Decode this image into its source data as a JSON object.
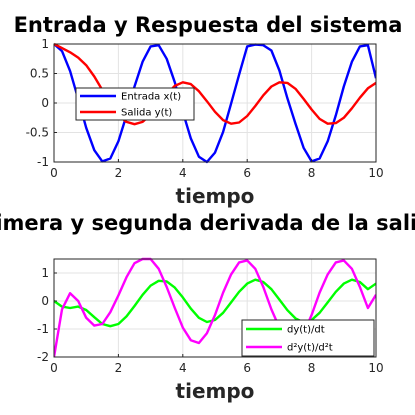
{
  "chart_data": [
    {
      "type": "line",
      "title": "Entrada y Respuesta del sistema",
      "xlabel": "tiempo",
      "ylabel": "",
      "xlim": [
        0,
        10
      ],
      "ylim": [
        -1,
        1
      ],
      "xticks": [
        "0",
        "2",
        "4",
        "6",
        "8",
        "10"
      ],
      "yticks": [
        "-1",
        "-0.5",
        "0",
        "0.5",
        "1"
      ],
      "grid": true,
      "legend_position": "center-left",
      "series": [
        {
          "name": "Entrada x(t)",
          "color": "#0000ff",
          "x": [
            0,
            0.25,
            0.5,
            0.75,
            1,
            1.25,
            1.5,
            1.75,
            2,
            2.25,
            2.5,
            2.75,
            3,
            3.25,
            3.5,
            3.75,
            4,
            4.25,
            4.5,
            4.75,
            5,
            5.25,
            5.5,
            5.75,
            6,
            6.25,
            6.5,
            6.75,
            7,
            7.25,
            7.5,
            7.75,
            8,
            8.25,
            8.5,
            8.75,
            9,
            9.25,
            9.5,
            9.75,
            10
          ],
          "y": [
            1,
            0.88,
            0.54,
            0.07,
            -0.42,
            -0.8,
            -0.99,
            -0.94,
            -0.65,
            -0.21,
            0.28,
            0.7,
            0.96,
            0.98,
            0.75,
            0.35,
            -0.15,
            -0.6,
            -0.91,
            -1,
            -0.84,
            -0.49,
            -0.01,
            0.48,
            0.96,
            0.99,
            0.98,
            0.89,
            0.55,
            0.08,
            -0.35,
            -0.76,
            -0.99,
            -0.94,
            -0.65,
            -0.21,
            0.28,
            0.7,
            0.96,
            0.98,
            0.42
          ]
        },
        {
          "name": "Salida y(t)",
          "color": "#ff0000",
          "x": [
            0,
            0.25,
            0.5,
            0.75,
            1,
            1.25,
            1.5,
            1.75,
            2,
            2.25,
            2.5,
            2.75,
            3,
            3.25,
            3.5,
            3.75,
            4,
            4.25,
            4.5,
            4.75,
            5,
            5.25,
            5.5,
            5.75,
            6,
            6.25,
            6.5,
            6.75,
            7,
            7.25,
            7.5,
            7.75,
            8,
            8.25,
            8.5,
            8.75,
            9,
            9.25,
            9.5,
            9.75,
            10
          ],
          "y": [
            1,
            0.93,
            0.86,
            0.77,
            0.64,
            0.45,
            0.22,
            -0.02,
            -0.21,
            -0.32,
            -0.36,
            -0.32,
            -0.2,
            -0.03,
            0.15,
            0.29,
            0.35,
            0.32,
            0.2,
            0.03,
            -0.15,
            -0.29,
            -0.35,
            -0.33,
            -0.22,
            -0.05,
            0.13,
            0.28,
            0.35,
            0.34,
            0.24,
            0.07,
            -0.11,
            -0.27,
            -0.35,
            -0.34,
            -0.25,
            -0.09,
            0.09,
            0.25,
            0.34
          ]
        }
      ]
    },
    {
      "type": "line",
      "title": "Primera y segunda derivada de la salida",
      "xlabel": "tiempo",
      "ylabel": "",
      "xlim": [
        0,
        10
      ],
      "ylim": [
        -2,
        1.5
      ],
      "xticks": [
        "0",
        "2",
        "4",
        "6",
        "8",
        "10"
      ],
      "yticks": [
        "-2",
        "-1",
        "0",
        "1"
      ],
      "grid": true,
      "legend_position": "bottom-right",
      "series": [
        {
          "name": "dy(t)/dt",
          "color": "#00ff00",
          "x": [
            0,
            0.25,
            0.5,
            0.75,
            1,
            1.25,
            1.5,
            1.75,
            2,
            2.25,
            2.5,
            2.75,
            3,
            3.25,
            3.5,
            3.75,
            4,
            4.25,
            4.5,
            4.75,
            5,
            5.25,
            5.5,
            5.75,
            6,
            6.25,
            6.5,
            6.75,
            7,
            7.25,
            7.5,
            7.75,
            8,
            8.25,
            8.5,
            8.75,
            9,
            9.25,
            9.5,
            9.75,
            10
          ],
          "y": [
            0,
            -0.2,
            -0.25,
            -0.2,
            -0.32,
            -0.58,
            -0.82,
            -0.9,
            -0.82,
            -0.55,
            -0.18,
            0.22,
            0.55,
            0.72,
            0.7,
            0.48,
            0.13,
            -0.27,
            -0.6,
            -0.75,
            -0.68,
            -0.42,
            -0.05,
            0.33,
            0.62,
            0.76,
            0.68,
            0.42,
            0.05,
            -0.33,
            -0.62,
            -0.76,
            -0.68,
            -0.42,
            -0.05,
            0.33,
            0.62,
            0.76,
            0.68,
            0.42,
            0.62
          ]
        },
        {
          "name": "d²y(t)/d²t",
          "color": "#ff00ff",
          "x": [
            0,
            0.25,
            0.5,
            0.75,
            1,
            1.25,
            1.5,
            1.75,
            2,
            2.25,
            2.5,
            2.75,
            3,
            3.25,
            3.5,
            3.75,
            4,
            4.25,
            4.5,
            4.75,
            5,
            5.25,
            5.5,
            5.75,
            6,
            6.25,
            6.5,
            6.75,
            7,
            7.25,
            7.5,
            7.75,
            8,
            8.25,
            8.5,
            8.75,
            9,
            9.25,
            9.5,
            9.75,
            10
          ],
          "y": [
            -2,
            -0.3,
            0.28,
            0.0,
            -0.6,
            -0.88,
            -0.82,
            -0.4,
            0.2,
            0.85,
            1.35,
            1.5,
            1.5,
            1.15,
            0.5,
            -0.25,
            -0.95,
            -1.4,
            -1.5,
            -1.15,
            -0.5,
            0.3,
            0.95,
            1.38,
            1.45,
            1.15,
            0.5,
            -0.3,
            -0.95,
            -1.38,
            -1.45,
            -1.15,
            -0.5,
            0.3,
            0.95,
            1.38,
            1.45,
            1.15,
            0.5,
            -0.25,
            0.22
          ]
        }
      ]
    }
  ]
}
